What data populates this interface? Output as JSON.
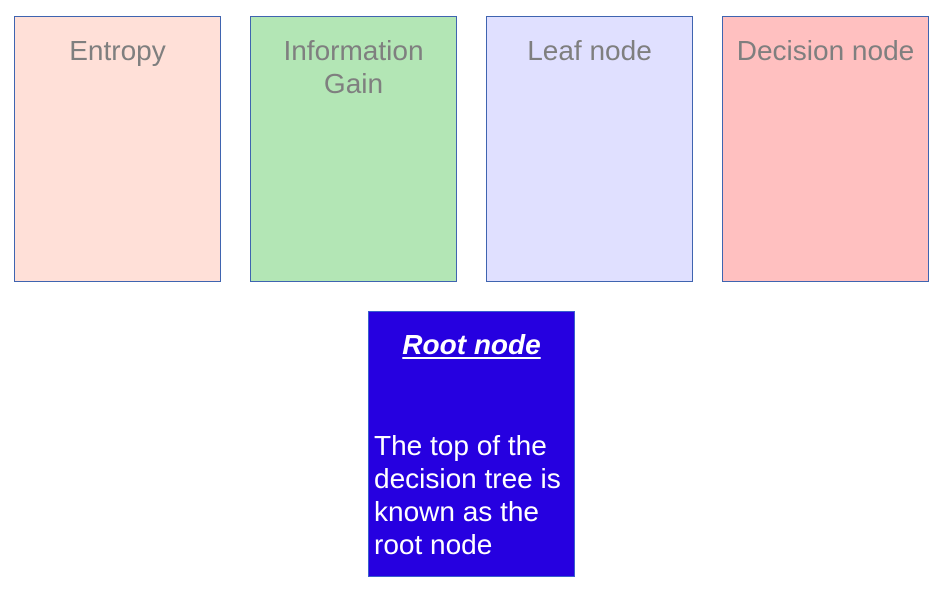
{
  "cards": [
    {
      "id": "entropy",
      "title": "Entropy",
      "color": "#ffe0d8"
    },
    {
      "id": "information-gain",
      "title": "Information Gain",
      "color": "#b3e6b5"
    },
    {
      "id": "leaf-node",
      "title": "Leaf node",
      "color": "#e0e0ff"
    },
    {
      "id": "decision-node",
      "title": "Decision node",
      "color": "#ffc0c0"
    }
  ],
  "root": {
    "title": "Root node",
    "description": "The top of the decision tree is known as the root node",
    "color": "#2600e0"
  }
}
